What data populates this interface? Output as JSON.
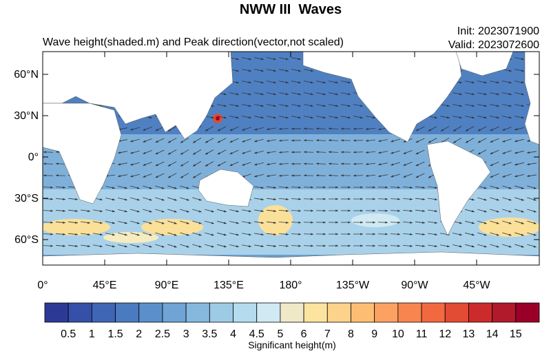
{
  "title": "NWW III  Waves",
  "subtitle": "Wave height(shaded.m) and Peak direction(vector,not scaled)",
  "init": "Init: 2023071900",
  "valid": "Valid: 2023072600",
  "map": {
    "lat_labels": [
      "60°N",
      "30°N",
      "0°",
      "30°S",
      "60°S"
    ],
    "lon_labels": [
      "0°",
      "45°E",
      "90°E",
      "135°E",
      "180°",
      "135°W",
      "90°W",
      "45°W"
    ]
  },
  "colorbar": {
    "colors": [
      "#2c3a96",
      "#3550a8",
      "#3f65b5",
      "#4a7bc0",
      "#5b8fca",
      "#6fa4d4",
      "#86b8de",
      "#9dcbe6",
      "#b5dcee",
      "#d0e9f3",
      "#efe9c8",
      "#fce3a0",
      "#fdd28a",
      "#fdbe74",
      "#fba162",
      "#f8854f",
      "#f2693f",
      "#e24b34",
      "#cc2b2b",
      "#b01a2a",
      "#9a0027"
    ],
    "labels": [
      "0.5",
      "1",
      "1.5",
      "2",
      "2.5",
      "3",
      "3.5",
      "4",
      "4.5",
      "5",
      "6",
      "7",
      "8",
      "9",
      "10",
      "11",
      "12",
      "13",
      "14",
      "15"
    ],
    "title": "Significant height(m)"
  }
}
